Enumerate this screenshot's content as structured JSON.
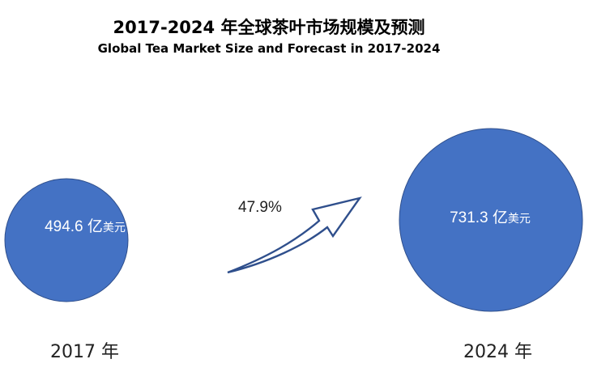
{
  "chart_data": {
    "type": "bubble",
    "title": "2017-2024 年全球茶叶市场规模及预测",
    "subtitle": "Global Tea Market Size and Forecast in 2017-2024",
    "categories": [
      "2017 年",
      "2024 年"
    ],
    "values": [
      494.6,
      731.3
    ],
    "value_labels": [
      "494.6 亿",
      "731.3 亿"
    ],
    "unit": "美元",
    "growth_label": "47.9%",
    "colors": {
      "bubble_fill": "#4472c4",
      "bubble_stroke": "#2f4f8c",
      "arrow_stroke": "#2f4f8c"
    }
  }
}
